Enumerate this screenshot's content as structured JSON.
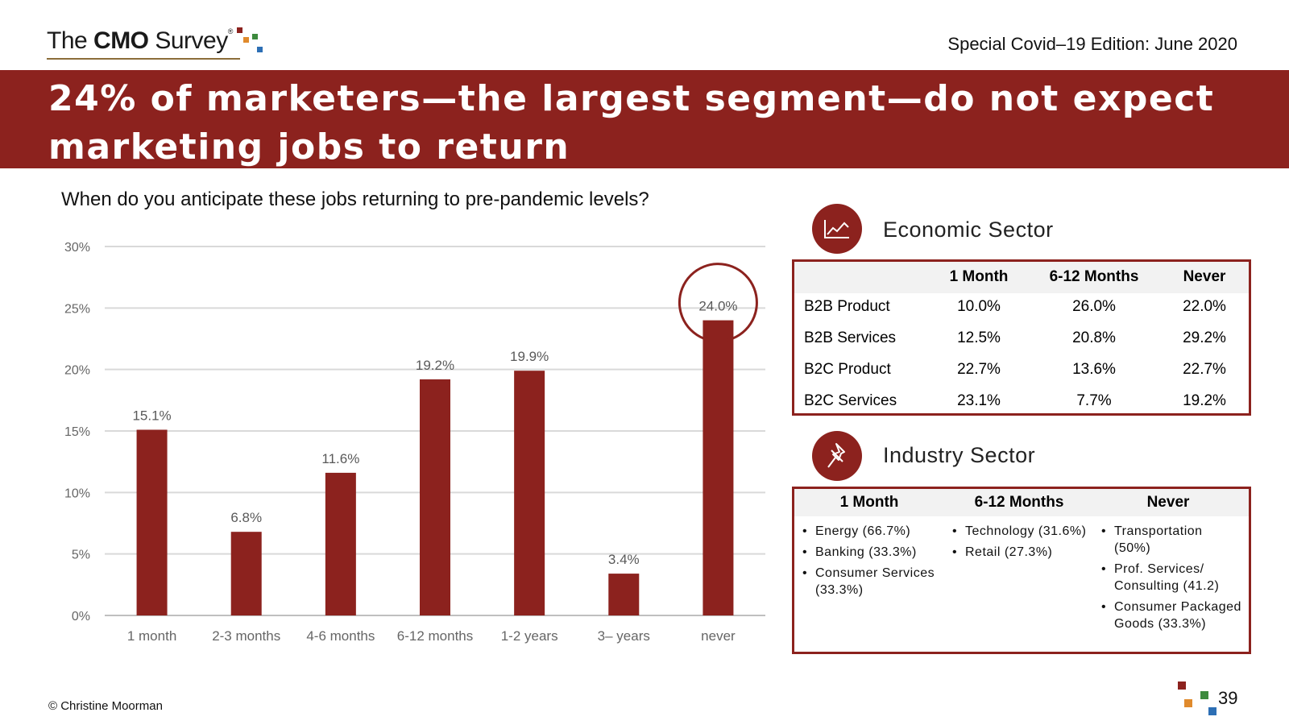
{
  "header": {
    "logo_pre": "The ",
    "logo_bold": "CMO",
    "logo_post": " Survey",
    "logo_reg": "®",
    "edition": "Special Covid–19 Edition: June 2020",
    "brand_colors": [
      "#8c221e",
      "#e08a2c",
      "#3d8a3e",
      "#2d6fb5"
    ]
  },
  "title": "24% of marketers—the largest segment—do not expect marketing jobs to return",
  "question": "When do you anticipate these jobs returning to pre-pandemic levels?",
  "chart_data": {
    "type": "bar",
    "categories": [
      "1 month",
      "2-3 months",
      "4-6 months",
      "6-12 months",
      "1-2 years",
      "3– years",
      "never"
    ],
    "values": [
      15.1,
      6.8,
      11.6,
      19.2,
      19.9,
      3.4,
      24.0
    ],
    "value_labels": [
      "15.1%",
      "6.8%",
      "11.6%",
      "19.2%",
      "19.9%",
      "3.4%",
      "24.0%"
    ],
    "y_ticks": [
      0,
      5,
      10,
      15,
      20,
      25,
      30
    ],
    "y_tick_labels": [
      "0%",
      "5%",
      "10%",
      "15%",
      "20%",
      "25%",
      "30%"
    ],
    "ylim": [
      0,
      30
    ],
    "title": "",
    "xlabel": "",
    "ylabel": "",
    "grid": true,
    "bar_color": "#8c221e",
    "highlight_index": 6
  },
  "economic": {
    "title": "Economic Sector",
    "icon": "line-chart-icon",
    "columns": [
      "1 Month",
      "6-12 Months",
      "Never"
    ],
    "rows": [
      {
        "label": "B2B Product",
        "values": [
          "10.0%",
          "26.0%",
          "22.0%"
        ]
      },
      {
        "label": "B2B Services",
        "values": [
          "12.5%",
          "20.8%",
          "29.2%"
        ]
      },
      {
        "label": "B2C Product",
        "values": [
          "22.7%",
          "13.6%",
          "22.7%"
        ]
      },
      {
        "label": "B2C Services",
        "values": [
          "23.1%",
          "7.7%",
          "19.2%"
        ]
      }
    ]
  },
  "industry": {
    "title": "Industry Sector",
    "icon": "pushpin-icon",
    "columns": [
      "1 Month",
      "6-12 Months",
      "Never"
    ],
    "lists": [
      [
        "Energy (66.7%)",
        "Banking (33.3%)",
        "Consumer Services (33.3%)"
      ],
      [
        "Technology (31.6%)",
        "Retail (27.3%)"
      ],
      [
        "Transportation (50%)",
        "Prof. Services/ Consulting (41.2)",
        "Consumer Packaged Goods (33.3%)"
      ]
    ]
  },
  "footer": {
    "copyright": "© Christine Moorman",
    "page": "39"
  }
}
